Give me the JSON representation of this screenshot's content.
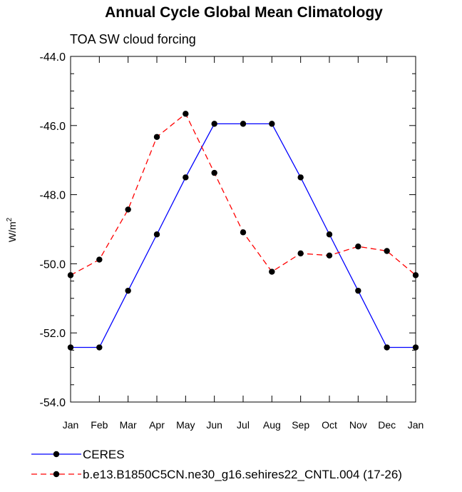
{
  "chart_data": {
    "type": "line",
    "title": "Annual Cycle Global Mean Climatology",
    "subtitle": "TOA SW cloud forcing",
    "ylabel": "W/m",
    "ylabel_superscript": "2",
    "xlabel": "",
    "categories": [
      "Jan",
      "Feb",
      "Mar",
      "Apr",
      "May",
      "Jun",
      "Jul",
      "Aug",
      "Sep",
      "Oct",
      "Nov",
      "Dec",
      "Jan"
    ],
    "ylim": [
      -54.0,
      -44.0
    ],
    "yticks": [
      "-44.0",
      "-46.0",
      "-48.0",
      "-50.0",
      "-52.0",
      "-54.0"
    ],
    "ytick_values": [
      -44,
      -46,
      -48,
      -50,
      -52,
      -54
    ],
    "legend_position": "bottom",
    "grid": false,
    "series": [
      {
        "name": "CERES",
        "color": "#0000ff",
        "dash": "solid",
        "marker": "filled-circle",
        "values": [
          -52.42,
          -52.42,
          -50.78,
          -49.15,
          -47.5,
          -45.95,
          -45.95,
          -45.95,
          -47.5,
          -49.15,
          -50.78,
          -52.42,
          -52.42
        ]
      },
      {
        "name": "b.e13.B1850C5CN.ne30_g16.sehires22_CNTL.004 (17-26)",
        "color": "#ff0000",
        "dash": "dashed",
        "marker": "filled-circle",
        "values": [
          -50.33,
          -49.88,
          -48.43,
          -46.33,
          -45.66,
          -47.37,
          -49.09,
          -50.23,
          -49.7,
          -49.76,
          -49.5,
          -49.63,
          -50.33
        ]
      }
    ]
  }
}
